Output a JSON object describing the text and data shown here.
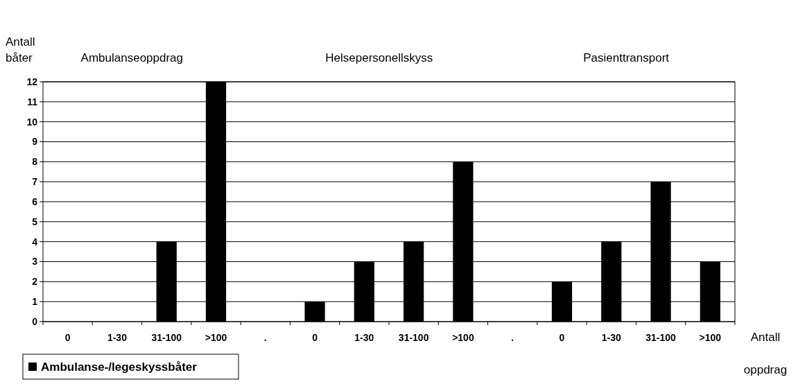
{
  "chart_data": {
    "type": "bar",
    "xlabel": "Antall oppdrag",
    "ylabel": "Antall båter",
    "categories": [
      "0",
      "1-30",
      "31-100",
      ">100",
      ".",
      "0",
      "1-30",
      "31-100",
      ">100",
      ".",
      "0",
      "1-30",
      "31-100",
      ">100"
    ],
    "series": [
      {
        "name": "Ambulanse-/legeskyssbåter",
        "color": "#000000",
        "values": [
          0,
          0,
          4,
          12,
          null,
          1,
          3,
          4,
          8,
          null,
          2,
          4,
          7,
          3
        ]
      }
    ],
    "ylim": [
      0,
      12
    ],
    "yticks": [
      0,
      1,
      2,
      3,
      4,
      5,
      6,
      7,
      8,
      9,
      10,
      11,
      12
    ],
    "grid": "y",
    "legend": "bottom left",
    "annotations": [
      "Ambulanseoppdrag",
      "Helsepersonellskyss",
      "Pasienttransport"
    ]
  }
}
